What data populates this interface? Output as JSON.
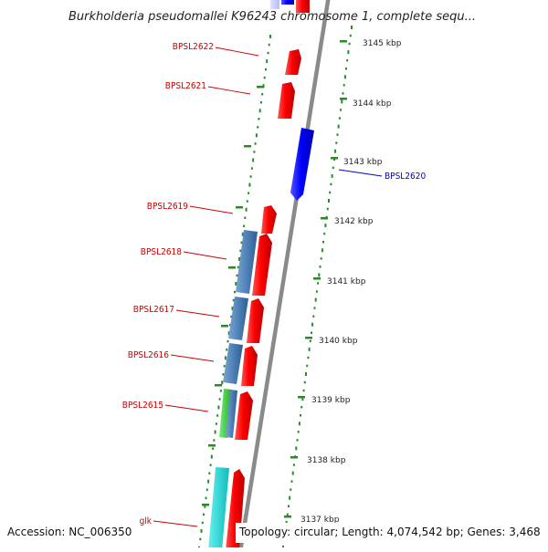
{
  "title": "Burkholderia pseudomallei K96243 chromosome 1, complete sequ...",
  "footer": {
    "accession": "Accession: NC_006350",
    "topology": "Topology: circular; Length: 4,074,542 bp; Genes: 3,468"
  },
  "colors": {
    "forward": "#ff0000",
    "reverse": "#0000ff",
    "steelblue": "#4f82b8",
    "green": "#44cc44",
    "cyan": "#22dddd",
    "backbone": "#888888",
    "tick": "#2a8a2a"
  },
  "kbp_labels": [
    "3145 kbp",
    "3144 kbp",
    "3143 kbp",
    "3142 kbp",
    "3141 kbp",
    "3140 kbp",
    "3139 kbp",
    "3138 kbp",
    "3137 kbp"
  ],
  "gene_labels": [
    {
      "name": "BPSL2622",
      "color": "#cc0000"
    },
    {
      "name": "BPSL2621",
      "color": "#cc0000"
    },
    {
      "name": "BPSL2620",
      "color": "#0000cc"
    },
    {
      "name": "BPSL2619",
      "color": "#cc0000"
    },
    {
      "name": "BPSL2618",
      "color": "#cc0000"
    },
    {
      "name": "BPSL2617",
      "color": "#cc0000"
    },
    {
      "name": "BPSL2616",
      "color": "#cc0000"
    },
    {
      "name": "BPSL2615",
      "color": "#cc0000"
    },
    {
      "name": "glk",
      "color": "#cc0000"
    }
  ]
}
